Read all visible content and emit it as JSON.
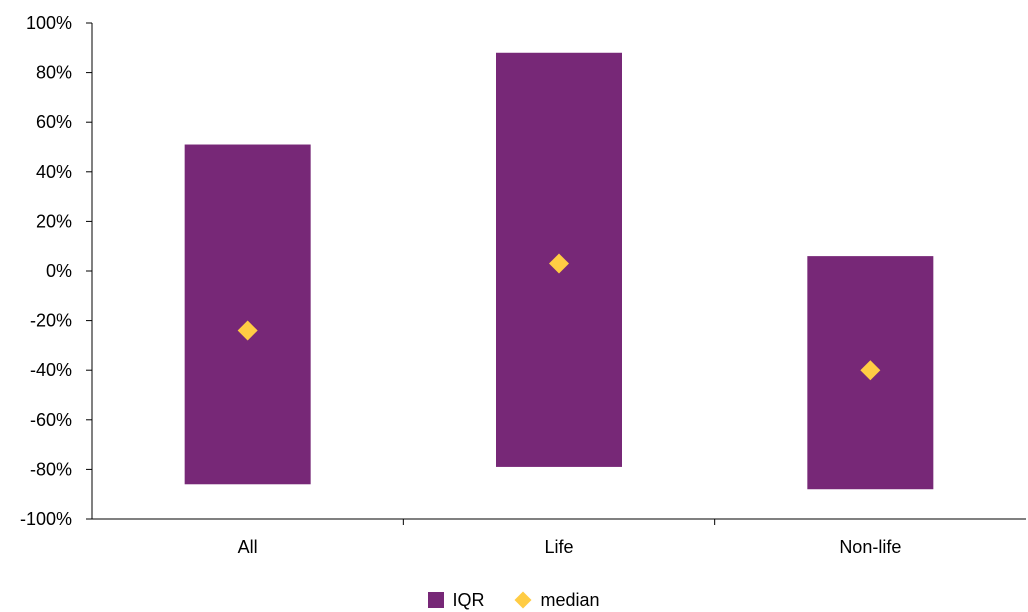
{
  "chart_data": {
    "type": "bar",
    "categories": [
      "All",
      "Life",
      "Non-life"
    ],
    "series": [
      {
        "name": "IQR",
        "low": [
          -86,
          -79,
          -88
        ],
        "high": [
          51,
          88,
          6
        ],
        "color": "#772877"
      },
      {
        "name": "median",
        "values": [
          -24,
          3,
          -40
        ],
        "color": "#FFCC44"
      }
    ],
    "ylim": [
      -100,
      100
    ],
    "yticks": [
      -100,
      -80,
      -60,
      -40,
      -20,
      0,
      20,
      40,
      60,
      80,
      100
    ],
    "ytick_labels": [
      "-100%",
      "-80%",
      "-60%",
      "-40%",
      "-20%",
      "0%",
      "20%",
      "40%",
      "60%",
      "80%",
      "100%"
    ],
    "legend_position": "bottom-center",
    "grid": false
  },
  "legend": {
    "iqr_label": "IQR",
    "median_label": "median"
  }
}
